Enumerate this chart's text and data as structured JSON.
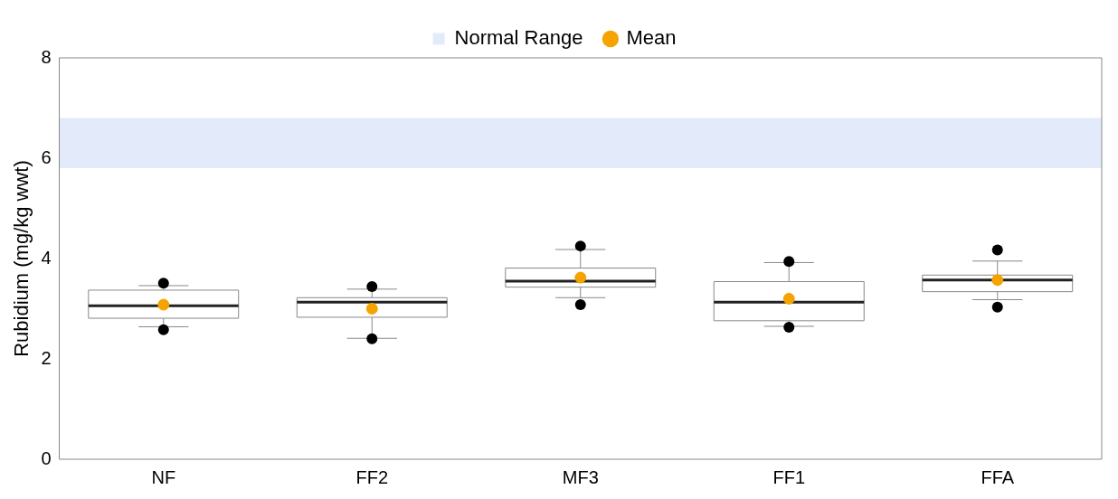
{
  "chart_data": {
    "type": "box",
    "ylabel": "Rubidium (mg/kg wwt)",
    "categories": [
      "NF",
      "FF2",
      "MF3",
      "FF1",
      "FFA"
    ],
    "boxes": [
      {
        "low": 2.64,
        "q1": 2.81,
        "median": 3.06,
        "q3": 3.37,
        "high": 3.46,
        "outliers": [
          3.51,
          2.58
        ]
      },
      {
        "low": 2.41,
        "q1": 2.83,
        "median": 3.13,
        "q3": 3.22,
        "high": 3.39,
        "outliers": [
          3.44,
          2.4
        ]
      },
      {
        "low": 3.22,
        "q1": 3.43,
        "median": 3.55,
        "q3": 3.81,
        "high": 4.18,
        "outliers": [
          4.25,
          3.08
        ]
      },
      {
        "low": 2.65,
        "q1": 2.76,
        "median": 3.13,
        "q3": 3.54,
        "high": 3.92,
        "outliers": [
          3.94,
          2.63
        ]
      },
      {
        "low": 3.18,
        "q1": 3.34,
        "median": 3.57,
        "q3": 3.67,
        "high": 3.95,
        "outliers": [
          4.17,
          3.03
        ]
      }
    ],
    "series": [
      {
        "name": "Mean",
        "type": "scatter",
        "color": "#f5a300",
        "x": [
          "NF",
          "FF2",
          "MF3",
          "FF1",
          "FFA"
        ],
        "values": [
          3.08,
          3.0,
          3.62,
          3.2,
          3.57
        ]
      }
    ],
    "bands": [
      {
        "axis": "y",
        "from": 5.8,
        "to": 6.8,
        "label": "Normal Range",
        "color": "#e3eafa"
      }
    ],
    "ylim": [
      0,
      8
    ],
    "yticks": [
      0,
      2,
      4,
      6,
      8
    ],
    "grid": false,
    "legend": "top",
    "marker": "circle"
  }
}
